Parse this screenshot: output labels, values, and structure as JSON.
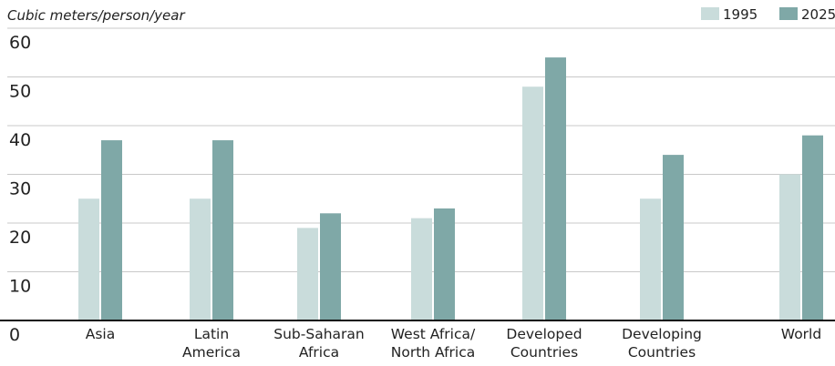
{
  "chart_data": {
    "type": "bar",
    "unit_label": "Cubic meters/person/year",
    "categories": [
      [
        "Asia"
      ],
      [
        "Latin",
        "America"
      ],
      [
        "Sub-Saharan",
        "Africa"
      ],
      [
        "West Africa/",
        "North Africa"
      ],
      [
        "Developed",
        "Countries"
      ],
      [
        "Developing",
        "Countries"
      ],
      [
        "World"
      ]
    ],
    "series": [
      {
        "name": "1995",
        "color": "#c9dcdb",
        "values": [
          25,
          25,
          19,
          21,
          48,
          25,
          30
        ]
      },
      {
        "name": "2025",
        "color": "#7fa8a7",
        "values": [
          37,
          37,
          22,
          23,
          54,
          34,
          38
        ]
      }
    ],
    "ylim": [
      0,
      60
    ],
    "yticks": [
      "0",
      "10",
      "20",
      "30",
      "40",
      "50",
      "60"
    ],
    "grid": true,
    "legend_position": "top-right"
  }
}
